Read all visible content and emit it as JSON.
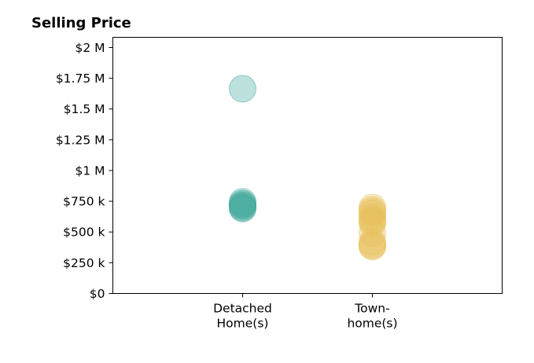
{
  "chart_data": {
    "type": "scatter",
    "title": "Selling Price",
    "categories": [
      {
        "key": "detached",
        "lines": [
          "Detached",
          "Home(s)"
        ]
      },
      {
        "key": "town",
        "lines": [
          "Town-",
          "home(s)"
        ]
      }
    ],
    "xlim": [
      -1,
      2
    ],
    "ylim": [
      0,
      2083000
    ],
    "y_ticks": [
      {
        "value": 0,
        "label": "$0"
      },
      {
        "value": 250000,
        "label": "$250 k"
      },
      {
        "value": 500000,
        "label": "$500 k"
      },
      {
        "value": 750000,
        "label": "$750 k"
      },
      {
        "value": 1000000,
        "label": "$1 M"
      },
      {
        "value": 1250000,
        "label": "$1.25 M"
      },
      {
        "value": 1500000,
        "label": "$1.5 M"
      },
      {
        "value": 1750000,
        "label": "$1.75 M"
      },
      {
        "value": 2000000,
        "label": "$2 M"
      }
    ],
    "grid": false,
    "series": [
      {
        "category": "detached",
        "color": "#43a89a",
        "alpha": 0.35,
        "values": [
          1665000,
          745000,
          730000,
          720000,
          710000,
          700000,
          690000
        ]
      },
      {
        "category": "town",
        "color": "#e8c15c",
        "alpha": 0.35,
        "values": [
          700000,
          680000,
          665000,
          650000,
          620000,
          600000,
          585000,
          570000,
          490000,
          420000,
          400000,
          390000,
          380000
        ]
      }
    ]
  }
}
